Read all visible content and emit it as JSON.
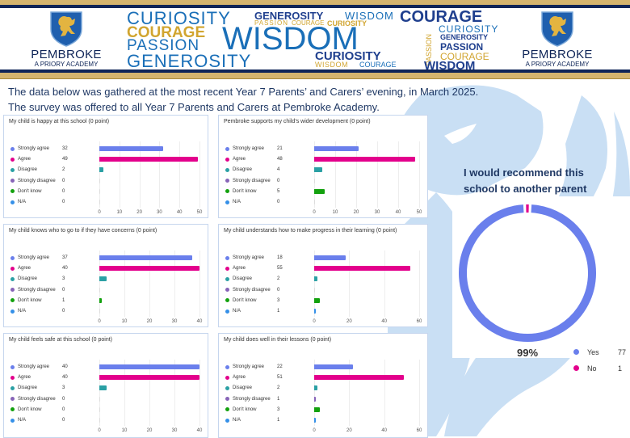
{
  "header": {
    "school_name": "PEMBROKE",
    "school_subtitle": "A PRIORY ACADEMY",
    "word_cloud": {
      "w1": "CURIOSITY",
      "w2": "GENEROSITY",
      "w3": "WISDOM",
      "w4": "COURAGE",
      "w5": "PASSION",
      "w6": "COURAGE",
      "w7": "CURIOSITY",
      "w8": "COURAGE",
      "w9": "PASSION",
      "w10": "WISDOM",
      "w11": "PASSION",
      "w12": "CURIOSITY",
      "w13": "GENEROSITY",
      "w14": "PASSION",
      "w15": "GENEROSITY",
      "w16": "CURIOSITY",
      "w17": "COURAGE",
      "w18": "WISDOM",
      "w19": "COURAGE",
      "w20": "WISDOM"
    }
  },
  "intro": {
    "line1": "The data below was gathered at the most recent Year 7 Parents’ and Carers’ evening, in March 2025.",
    "line2": "The survey was offered to all Year 7 Parents and Carers at Pembroke Academy."
  },
  "colors": {
    "strongly_agree": "#6a7fec",
    "agree": "#e3008c",
    "disagree": "#2aa0a4",
    "strongly_disagree": "#8764b8",
    "dont_know": "#13a10e",
    "na": "#3590e8",
    "navy": "#0e2457",
    "gold": "#d4b46e"
  },
  "chart_data": [
    {
      "type": "bar",
      "title": "My child is happy at this school (0 point)",
      "categories": [
        "Strongly agree",
        "Agree",
        "Disagree",
        "Strongly disagree",
        "Don't know",
        "N/A"
      ],
      "values": [
        32,
        49,
        2,
        0,
        0,
        0
      ],
      "xlim": [
        0,
        50
      ],
      "ticks": [
        0,
        10,
        20,
        30,
        40,
        50
      ],
      "grid": true
    },
    {
      "type": "bar",
      "title": "Pembroke supports my child’s wider development (0 point)",
      "categories": [
        "Strongly agree",
        "Agree",
        "Disagree",
        "Strongly disagree",
        "Don't know",
        "N/A"
      ],
      "values": [
        21,
        48,
        4,
        0,
        5,
        0
      ],
      "xlim": [
        0,
        50
      ],
      "ticks": [
        0,
        10,
        20,
        30,
        40,
        50
      ],
      "grid": true
    },
    {
      "type": "bar",
      "title": "My child knows who to go to if they have concerns (0 point)",
      "categories": [
        "Strongly agree",
        "Agree",
        "Disagree",
        "Strongly disagree",
        "Don't know",
        "N/A"
      ],
      "values": [
        37,
        40,
        3,
        0,
        1,
        0
      ],
      "xlim": [
        0,
        40
      ],
      "ticks": [
        0,
        10,
        20,
        30,
        40
      ],
      "grid": true
    },
    {
      "type": "bar",
      "title": "My child understands how to make progress in their learning (0 point)",
      "categories": [
        "Strongly agree",
        "Agree",
        "Disagree",
        "Strongly disagree",
        "Don't know",
        "N/A"
      ],
      "values": [
        18,
        55,
        2,
        0,
        3,
        1
      ],
      "xlim": [
        0,
        60
      ],
      "ticks": [
        0,
        20,
        40,
        60
      ],
      "grid": true
    },
    {
      "type": "bar",
      "title": "My child feels safe at this school (0 point)",
      "categories": [
        "Strongly agree",
        "Agree",
        "Disagree",
        "Strongly disagree",
        "Don't know",
        "N/A"
      ],
      "values": [
        40,
        40,
        3,
        0,
        0,
        0
      ],
      "xlim": [
        0,
        40
      ],
      "ticks": [
        0,
        10,
        20,
        30,
        40
      ],
      "grid": true
    },
    {
      "type": "bar",
      "title": "My child does well in their lessons (0 point)",
      "categories": [
        "Strongly agree",
        "Agree",
        "Disagree",
        "Strongly disagree",
        "Don't know",
        "N/A"
      ],
      "values": [
        22,
        51,
        2,
        1,
        3,
        1
      ],
      "xlim": [
        0,
        60
      ],
      "ticks": [
        0,
        20,
        40,
        60
      ],
      "grid": true
    },
    {
      "type": "pie",
      "title": "I would recommend this school to another parent",
      "categories": [
        "Yes",
        "No"
      ],
      "values": [
        77,
        1
      ],
      "center_label": "99%",
      "legend": "right"
    }
  ]
}
